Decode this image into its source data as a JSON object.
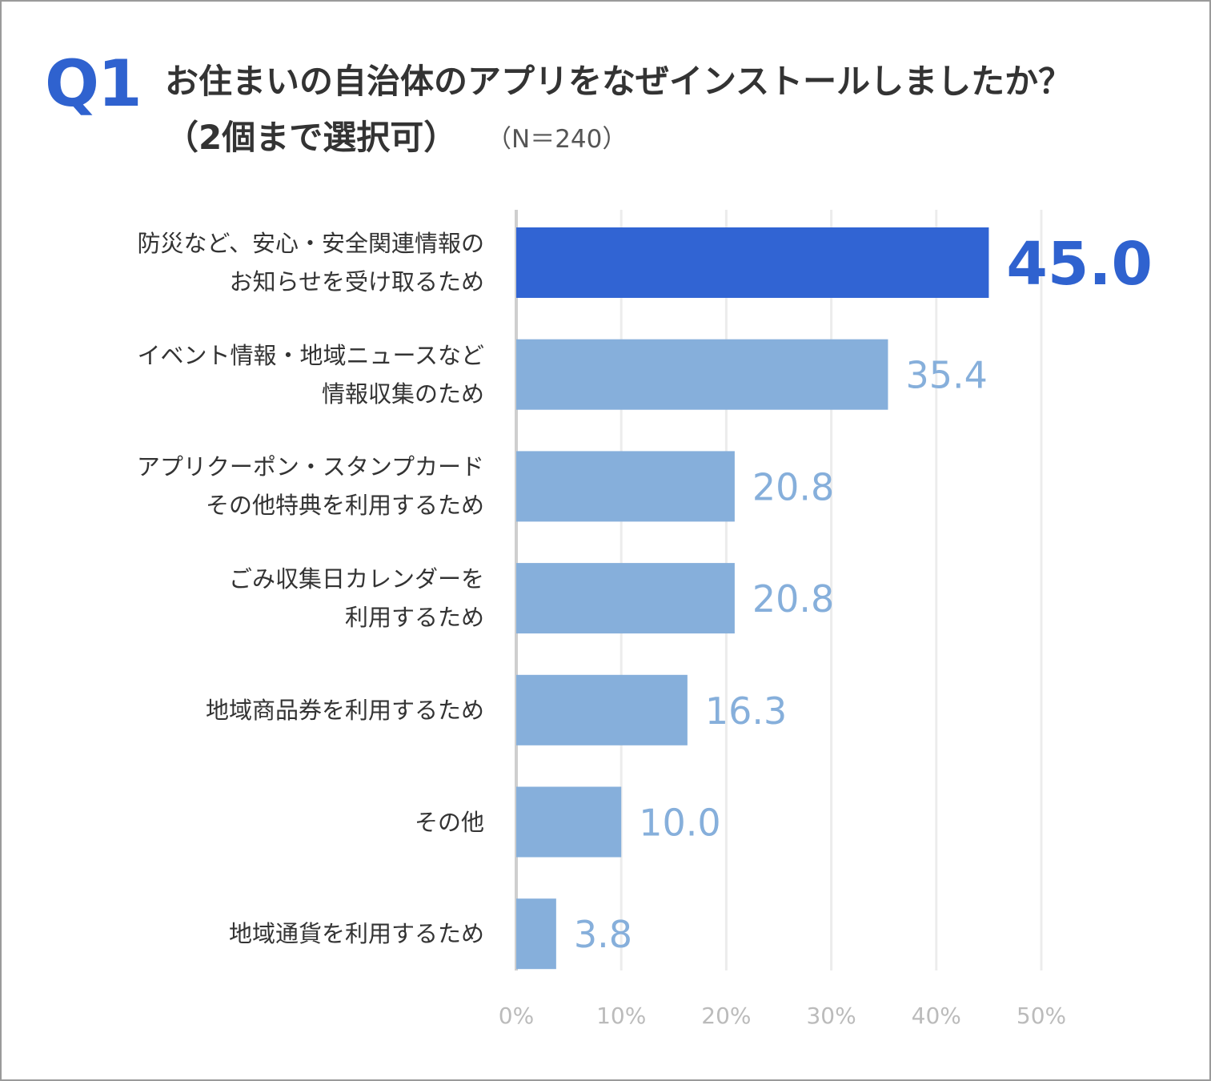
{
  "header": {
    "q_label": "Q1",
    "title_line1": "お住まいの自治体のアプリをなぜインストールしましたか？",
    "title_line2": "（2個まで選択可）",
    "sample_size": "（N＝240）"
  },
  "colors": {
    "highlight_bar": "#3164d3",
    "bar": "#86afdb",
    "highlight_label": "#2f62cf",
    "label": "#86afdb",
    "grid": "#ececec",
    "tick": "#bbbbbb"
  },
  "chart_data": {
    "type": "bar",
    "orientation": "horizontal",
    "title": "お住まいの自治体のアプリをなぜインストールしましたか？（2個まで選択可）",
    "unit": "%",
    "categories": [
      "防災など、安心・安全関連情報の\nお知らせを受け取るため",
      "イベント情報・地域ニュースなど\n情報収集のため",
      "アプリクーポン・スタンプカード\nその他特典を利用するため",
      "ごみ収集日カレンダーを\n利用するため",
      "地域商品券を利用するため",
      "その他",
      "地域通貨を利用するため"
    ],
    "values": [
      45.0,
      35.4,
      20.8,
      20.8,
      16.3,
      10.0,
      3.8
    ],
    "value_labels": [
      "45.0",
      "35.4",
      "20.8",
      "20.8",
      "16.3",
      "10.0",
      "3.8"
    ],
    "highlight_index": 0,
    "xlim": [
      0,
      50
    ],
    "xticks": [
      "0%",
      "10%",
      "20%",
      "30%",
      "40%",
      "50%"
    ],
    "grid": true
  }
}
